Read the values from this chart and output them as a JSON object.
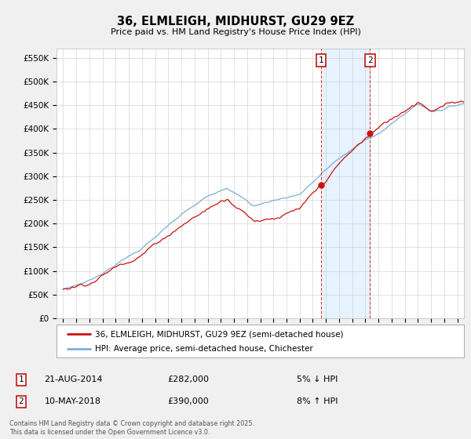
{
  "title": "36, ELMLEIGH, MIDHURST, GU29 9EZ",
  "subtitle": "Price paid vs. HM Land Registry's House Price Index (HPI)",
  "ylabel_ticks": [
    "£0",
    "£50K",
    "£100K",
    "£150K",
    "£200K",
    "£250K",
    "£300K",
    "£350K",
    "£400K",
    "£450K",
    "£500K",
    "£550K"
  ],
  "ytick_vals": [
    0,
    50000,
    100000,
    150000,
    200000,
    250000,
    300000,
    350000,
    400000,
    450000,
    500000,
    550000
  ],
  "ylim": [
    0,
    570000
  ],
  "legend_line1": "36, ELMLEIGH, MIDHURST, GU29 9EZ (semi-detached house)",
  "legend_line2": "HPI: Average price, semi-detached house, Chichester",
  "sale1_date": "21-AUG-2014",
  "sale1_price": "£282,000",
  "sale1_hpi": "5% ↓ HPI",
  "sale1_year": 2014.64,
  "sale1_value": 282000,
  "sale2_date": "10-MAY-2018",
  "sale2_price": "£390,000",
  "sale2_hpi": "8% ↑ HPI",
  "sale2_year": 2018.36,
  "sale2_value": 390000,
  "hpi_color": "#7bafd4",
  "sale_color": "#cc1111",
  "dashed_color": "#cc1111",
  "shade_color": "#ddeeff",
  "background_color": "#f0f0f0",
  "plot_bg_color": "#ffffff",
  "grid_color": "#cccccc",
  "footnote": "Contains HM Land Registry data © Crown copyright and database right 2025.\nThis data is licensed under the Open Government Licence v3.0.",
  "xlabel_years": [
    1995,
    1996,
    1997,
    1998,
    1999,
    2000,
    2001,
    2002,
    2003,
    2004,
    2005,
    2006,
    2007,
    2008,
    2009,
    2010,
    2011,
    2012,
    2013,
    2014,
    2015,
    2016,
    2017,
    2018,
    2019,
    2020,
    2021,
    2022,
    2023,
    2024,
    2025
  ],
  "xstart": 1995.0,
  "xend": 2025.5
}
